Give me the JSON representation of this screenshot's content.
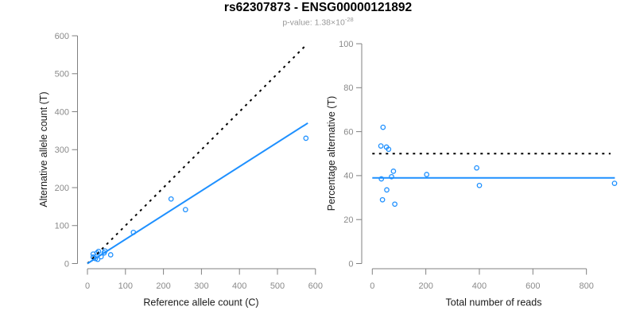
{
  "header": {
    "title": "rs62307873 - ENSG00000121892",
    "subtitle_prefix": "p-value: 1.38×10",
    "subtitle_exponent": "-28"
  },
  "colors": {
    "point_blue": "#1E90FF",
    "fit_blue": "#1E90FF",
    "reference_black": "#000000",
    "axis_gray": "#808080",
    "tick_label_gray": "#8a8a8a",
    "label_black": "#1a1a1a",
    "background": "#ffffff"
  },
  "chart_data": [
    {
      "id": "allele-counts-scatter",
      "type": "scatter",
      "xlabel": "Reference allele count (C)",
      "ylabel": "Alternative allele count (T)",
      "xlim": [
        0,
        600
      ],
      "ylim": [
        0,
        600
      ],
      "xticks": [
        0,
        100,
        200,
        300,
        400,
        500,
        600
      ],
      "yticks": [
        0,
        100,
        200,
        300,
        400,
        500,
        600
      ],
      "grid": false,
      "legend": "none",
      "points": [
        [
          15,
          25
        ],
        [
          15,
          17
        ],
        [
          25,
          28
        ],
        [
          29,
          32
        ],
        [
          46,
          33
        ],
        [
          44,
          28
        ],
        [
          21,
          13
        ],
        [
          36,
          18
        ],
        [
          27,
          11
        ],
        [
          61,
          23
        ],
        [
          121,
          82
        ],
        [
          220,
          170
        ],
        [
          258,
          142
        ],
        [
          575,
          330
        ]
      ],
      "lines": [
        {
          "name": "identity-line",
          "style": "dashed",
          "color_key": "reference_black",
          "x1": 0,
          "y1": 0,
          "x2": 575,
          "y2": 575
        },
        {
          "name": "fit-line",
          "style": "solid",
          "color_key": "fit_blue",
          "x1": 0,
          "y1": 0,
          "x2": 580,
          "y2": 370
        }
      ]
    },
    {
      "id": "percentage-alternative-scatter",
      "type": "scatter",
      "xlabel": "Total number of reads",
      "ylabel": "Percentage alternative (T)",
      "xlim": [
        0,
        920
      ],
      "ylim": [
        0,
        100
      ],
      "xticks": [
        0,
        200,
        400,
        600,
        800
      ],
      "yticks": [
        0,
        20,
        40,
        60,
        80,
        100
      ],
      "grid": false,
      "legend": "none",
      "points": [
        [
          40,
          62
        ],
        [
          32,
          53.5
        ],
        [
          53,
          53
        ],
        [
          61,
          52
        ],
        [
          79,
          42
        ],
        [
          72,
          39.5
        ],
        [
          34,
          38.5
        ],
        [
          54,
          33.5
        ],
        [
          38,
          29
        ],
        [
          84,
          27
        ],
        [
          203,
          40.5
        ],
        [
          390,
          43.5
        ],
        [
          400,
          35.5
        ],
        [
          905,
          36.5
        ]
      ],
      "lines": [
        {
          "name": "expected-50pct-line",
          "style": "dashed",
          "color_key": "reference_black",
          "x1": 0,
          "y1": 50,
          "x2": 890,
          "y2": 50
        },
        {
          "name": "mean-percentage-line",
          "style": "solid",
          "color_key": "fit_blue",
          "x1": 0,
          "y1": 39,
          "x2": 906,
          "y2": 39
        }
      ]
    }
  ]
}
